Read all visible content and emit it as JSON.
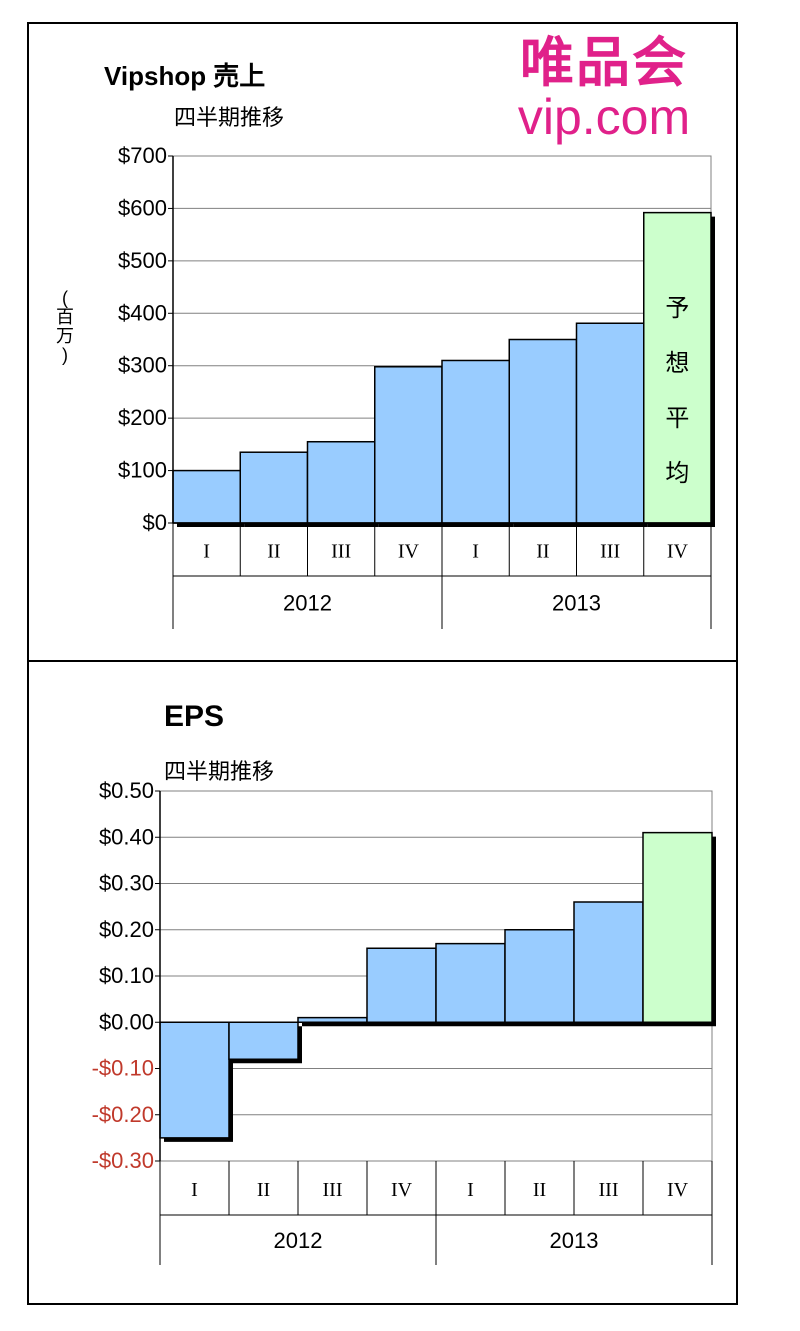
{
  "colors": {
    "actual": "#99ccff",
    "estimate": "#ccffcc",
    "negative_tick": "#c0392b",
    "logo": "#e0218a"
  },
  "logo": {
    "jp": "唯品会",
    "en": "vip.com"
  },
  "chart_data": [
    {
      "type": "bar",
      "title": "Vipshop 売上",
      "subtitle": "四半期推移",
      "ylabel": "(百万)",
      "xlabel": "",
      "ylim": [
        0,
        700
      ],
      "yticks": [
        0,
        100,
        200,
        300,
        400,
        500,
        600,
        700
      ],
      "ytick_labels": [
        "$0",
        "$100",
        "$200",
        "$300",
        "$400",
        "$500",
        "$600",
        "$700"
      ],
      "categories": [
        "I",
        "II",
        "III",
        "IV",
        "I",
        "II",
        "III",
        "IV"
      ],
      "groups": [
        {
          "label": "2012",
          "count": 4
        },
        {
          "label": "2013",
          "count": 4
        }
      ],
      "values": [
        100,
        135,
        155,
        298,
        310,
        350,
        381,
        592
      ],
      "estimate_index": [
        7
      ],
      "annotation": "予想平均",
      "grid": true
    },
    {
      "type": "bar",
      "title": "EPS",
      "subtitle": "四半期推移",
      "ylabel": "",
      "xlabel": "",
      "ylim": [
        -0.3,
        0.5
      ],
      "yticks": [
        0.5,
        0.4,
        0.3,
        0.2,
        0.1,
        0.0,
        -0.1,
        -0.2,
        -0.3
      ],
      "ytick_labels": [
        "$0.50",
        "$0.40",
        "$0.30",
        "$0.20",
        "$0.10",
        "$0.00",
        "-$0.10",
        "-$0.20",
        "-$0.30"
      ],
      "categories": [
        "I",
        "II",
        "III",
        "IV",
        "I",
        "II",
        "III",
        "IV"
      ],
      "groups": [
        {
          "label": "2012",
          "count": 4
        },
        {
          "label": "2013",
          "count": 4
        }
      ],
      "values": [
        -0.25,
        -0.08,
        0.01,
        0.16,
        0.17,
        0.2,
        0.26,
        0.41
      ],
      "estimate_index": [
        7
      ],
      "grid": true
    }
  ]
}
